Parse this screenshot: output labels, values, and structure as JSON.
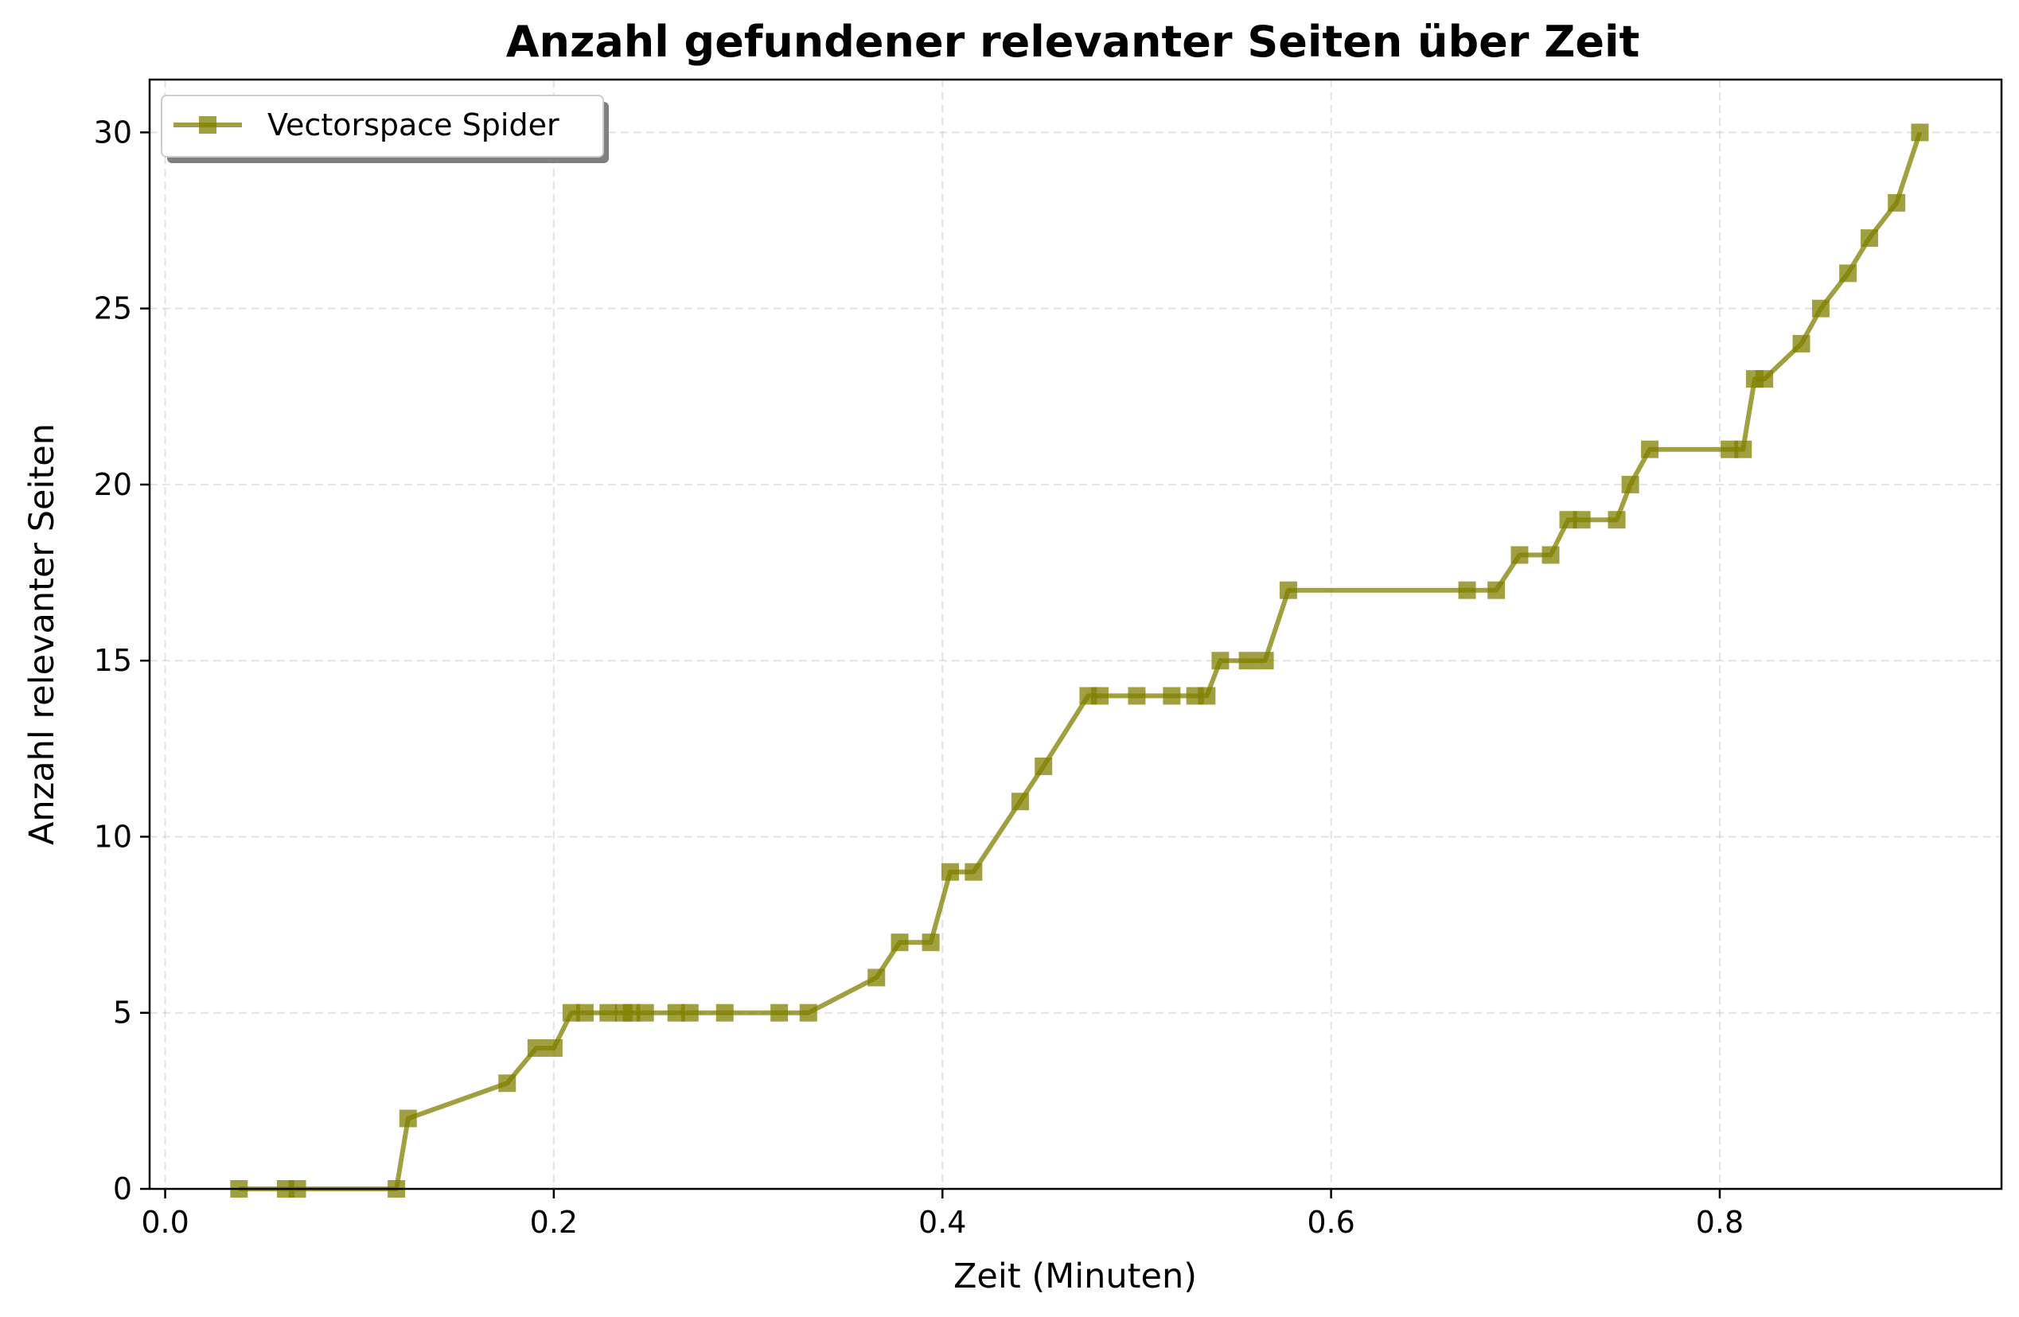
{
  "chart_data": {
    "type": "line",
    "title": "Anzahl gefundener relevanter Seiten über Zeit",
    "xlabel": "Zeit (Minuten)",
    "ylabel": "Anzahl relevanter Seiten",
    "xlim": [
      -0.008,
      0.945
    ],
    "ylim": [
      0,
      31.5
    ],
    "xticks": [
      0.0,
      0.2,
      0.4,
      0.6,
      0.8
    ],
    "xtick_labels": [
      "0.0",
      "0.2",
      "0.4",
      "0.6",
      "0.8"
    ],
    "yticks": [
      0,
      5,
      10,
      15,
      20,
      25,
      30
    ],
    "ytick_labels": [
      "0",
      "5",
      "10",
      "15",
      "20",
      "25",
      "30"
    ],
    "grid": true,
    "legend_position": "top-left",
    "series": [
      {
        "name": "Vectorspace Spider",
        "color": "#808000",
        "marker": "square",
        "x": [
          0.038,
          0.062,
          0.068,
          0.119,
          0.125,
          0.176,
          0.191,
          0.2,
          0.209,
          0.216,
          0.228,
          0.236,
          0.24,
          0.247,
          0.263,
          0.27,
          0.288,
          0.316,
          0.331,
          0.366,
          0.378,
          0.394,
          0.404,
          0.416,
          0.44,
          0.452,
          0.475,
          0.481,
          0.5,
          0.518,
          0.53,
          0.536,
          0.543,
          0.557,
          0.566,
          0.578,
          0.67,
          0.685,
          0.697,
          0.713,
          0.722,
          0.729,
          0.747,
          0.754,
          0.764,
          0.805,
          0.812,
          0.818,
          0.823,
          0.842,
          0.852,
          0.866,
          0.877,
          0.891,
          0.903
        ],
        "values": [
          0,
          0,
          0,
          0,
          2,
          3,
          4,
          4,
          5,
          5,
          5,
          5,
          5,
          5,
          5,
          5,
          5,
          5,
          5,
          6,
          7,
          7,
          9,
          9,
          11,
          12,
          14,
          14,
          14,
          14,
          14,
          14,
          15,
          15,
          15,
          17,
          17,
          17,
          18,
          18,
          19,
          19,
          19,
          20,
          21,
          21,
          21,
          23,
          23,
          24,
          25,
          26,
          27,
          28,
          30
        ]
      }
    ]
  }
}
